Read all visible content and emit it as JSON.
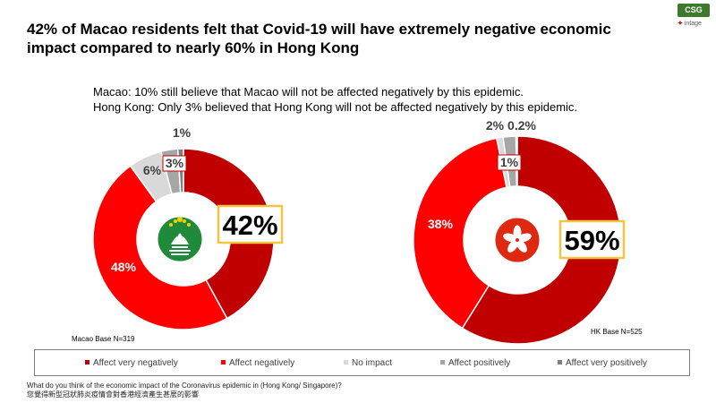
{
  "title": "42% of Macao residents felt that Covid-19 will have extremely negative economic impact compared to nearly 60% in Hong Kong",
  "notes": [
    "Macao: 10% still believe that Macao will not be affected negatively by this epidemic.",
    "Hong Kong: Only 3% believed that Hong Kong will not be affected negatively by this epidemic."
  ],
  "logos": {
    "csg": "CSG",
    "intage": "intage"
  },
  "question": {
    "en": "What do you think of the economic impact of the Coronavirus epidemic in (Hong Kong/ Singapore)?",
    "zh": "您覺得新型冠狀肺炎疫情會對香港經濟產生甚麼的影響"
  },
  "chart_data": [
    {
      "type": "pie",
      "variant": "donut",
      "name": "Macao",
      "base_label": "Macao Base N=319",
      "center_icon": "macao-flag-icon",
      "highlight_label": "42%",
      "categories": [
        "Affect very negatively",
        "Affect negatively",
        "No impact",
        "Affect positively",
        "Affect very positively"
      ],
      "values": [
        42,
        48,
        6,
        3,
        1
      ],
      "labels": [
        "42%",
        "48%",
        "6%",
        "3%",
        "1%"
      ]
    },
    {
      "type": "pie",
      "variant": "donut",
      "name": "Hong Kong",
      "base_label": "HK Base N=525",
      "center_icon": "hong-kong-flag-icon",
      "highlight_label": "59%",
      "categories": [
        "Affect very negatively",
        "Affect negatively",
        "No impact",
        "Affect positively",
        "Affect very positively"
      ],
      "values": [
        59,
        38,
        1,
        2,
        0.2
      ],
      "labels": [
        "59%",
        "38%",
        "1%",
        "2%",
        "0.2%"
      ]
    }
  ],
  "legend": {
    "items": [
      {
        "label": "Affect very negatively",
        "color": "#c00000"
      },
      {
        "label": "Affect negatively",
        "color": "#ff0000"
      },
      {
        "label": "No impact",
        "color": "#d9d9d9"
      },
      {
        "label": "Affect positively",
        "color": "#a6a6a6"
      },
      {
        "label": "Affect very positively",
        "color": "#7f7f7f"
      }
    ]
  }
}
